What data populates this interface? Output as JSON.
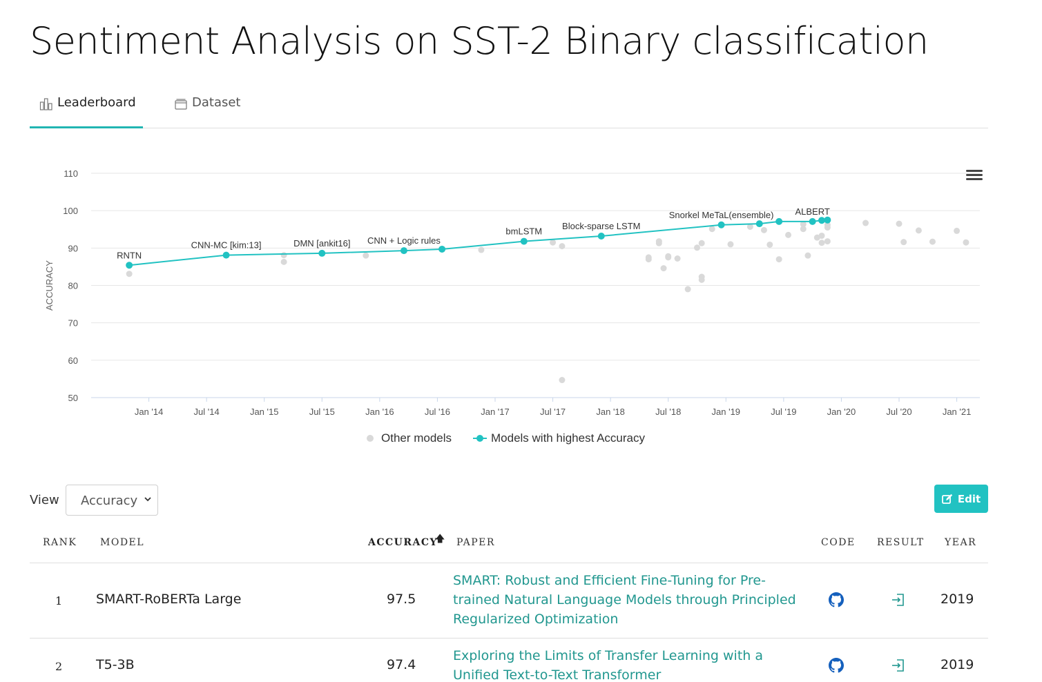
{
  "page": {
    "title": "Sentiment Analysis on SST-2 Binary classification"
  },
  "tabs": [
    {
      "label": "Leaderboard",
      "icon": "bar-chart-icon",
      "active": true
    },
    {
      "label": "Dataset",
      "icon": "database-icon",
      "active": false
    }
  ],
  "colors": {
    "accent": "#21b5b2",
    "best_line": "#21c2c2",
    "other_points": "#d9d9d9",
    "link": "#21978f"
  },
  "chart_data": {
    "type": "scatter",
    "ylabel": "ACCURACY",
    "xlabel": "",
    "ylim": [
      50,
      110
    ],
    "yticks": [
      110,
      100,
      90,
      80,
      70,
      60,
      50
    ],
    "xticks": [
      "Jan '14",
      "Jul '14",
      "Jan '15",
      "Jul '15",
      "Jan '16",
      "Jul '16",
      "Jan '17",
      "Jul '17",
      "Jan '18",
      "Jul '18",
      "Jan '19",
      "Jul '19",
      "Jan '20",
      "Jul '20",
      "Jan '21"
    ],
    "grid": true,
    "legend_position": "bottom",
    "series": [
      {
        "name": "Other models",
        "style": "points",
        "points": [
          [
            2013.83,
            83.1
          ],
          [
            2015.17,
            88.1
          ],
          [
            2015.17,
            86.3
          ],
          [
            2015.88,
            88.0
          ],
          [
            2016.88,
            89.5
          ],
          [
            2017.5,
            91.5
          ],
          [
            2017.58,
            90.5
          ],
          [
            2017.58,
            54.7
          ],
          [
            2018.33,
            87.0
          ],
          [
            2018.33,
            87.5
          ],
          [
            2018.42,
            91.8
          ],
          [
            2018.42,
            91.3
          ],
          [
            2018.46,
            84.6
          ],
          [
            2018.5,
            87.8
          ],
          [
            2018.5,
            87.5
          ],
          [
            2018.58,
            87.2
          ],
          [
            2018.67,
            79.0
          ],
          [
            2018.75,
            90.1
          ],
          [
            2018.79,
            91.3
          ],
          [
            2018.79,
            82.3
          ],
          [
            2018.79,
            81.5
          ],
          [
            2018.88,
            95.1
          ],
          [
            2019.04,
            91.0
          ],
          [
            2019.21,
            95.7
          ],
          [
            2019.33,
            94.8
          ],
          [
            2019.38,
            90.9
          ],
          [
            2019.46,
            87.0
          ],
          [
            2019.54,
            93.5
          ],
          [
            2019.67,
            96.4
          ],
          [
            2019.67,
            95.1
          ],
          [
            2019.71,
            88.0
          ],
          [
            2019.79,
            92.8
          ],
          [
            2019.83,
            93.3
          ],
          [
            2019.83,
            91.4
          ],
          [
            2019.88,
            96.2
          ],
          [
            2019.88,
            95.5
          ],
          [
            2019.88,
            91.8
          ],
          [
            2020.21,
            96.7
          ],
          [
            2020.5,
            96.5
          ],
          [
            2020.54,
            91.6
          ],
          [
            2020.67,
            94.7
          ],
          [
            2020.79,
            91.7
          ],
          [
            2021.0,
            94.6
          ],
          [
            2021.08,
            91.5
          ]
        ]
      },
      {
        "name": "Models with highest Accuracy",
        "style": "line",
        "points": [
          {
            "x": 2013.83,
            "y": 85.4,
            "label": "RNTN"
          },
          {
            "x": 2014.67,
            "y": 88.1,
            "label": "CNN-MC [kim:13]"
          },
          {
            "x": 2015.5,
            "y": 88.6,
            "label": "DMN [ankit16]"
          },
          {
            "x": 2016.21,
            "y": 89.3,
            "label": "CNN + Logic rules"
          },
          {
            "x": 2016.54,
            "y": 89.7,
            "label": ""
          },
          {
            "x": 2017.25,
            "y": 91.8,
            "label": "bmLSTM"
          },
          {
            "x": 2017.92,
            "y": 93.2,
            "label": "Block-sparse LSTM"
          },
          {
            "x": 2018.96,
            "y": 96.2,
            "label": "Snorkel MeTaL(ensemble)"
          },
          {
            "x": 2019.29,
            "y": 96.5,
            "label": ""
          },
          {
            "x": 2019.46,
            "y": 97.1,
            "label": ""
          },
          {
            "x": 2019.75,
            "y": 97.1,
            "label": "ALBERT"
          },
          {
            "x": 2019.83,
            "y": 97.4,
            "label": ""
          },
          {
            "x": 2019.88,
            "y": 97.5,
            "label": ""
          }
        ]
      }
    ]
  },
  "legend": {
    "other": "Other models",
    "best": "Models with highest Accuracy"
  },
  "toolbar": {
    "view_label": "View",
    "view_selected": "Accuracy",
    "edit_label": "Edit"
  },
  "table": {
    "headers": {
      "rank": "Rank",
      "model": "Model",
      "accuracy": "Accuracy",
      "paper": "Paper",
      "code": "Code",
      "result": "Result",
      "year": "Year"
    },
    "rows": [
      {
        "rank": "1",
        "model": "SMART-RoBERTa Large",
        "accuracy": "97.5",
        "paper": "SMART: Robust and Efficient Fine-Tuning for Pre-trained Natural Language Models through Principled Regularized Optimization",
        "year": "2019"
      },
      {
        "rank": "2",
        "model": "T5-3B",
        "accuracy": "97.4",
        "paper": "Exploring the Limits of Transfer Learning with a Unified Text-to-Text Transformer",
        "year": "2019"
      }
    ]
  }
}
